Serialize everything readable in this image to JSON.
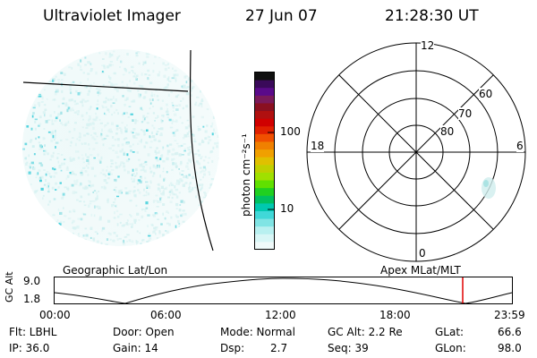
{
  "header": {
    "title": "Ultraviolet Imager",
    "date": "27 Jun 07",
    "time": "21:28:30 UT"
  },
  "colorbar": {
    "label": "photon cm⁻²s⁻¹",
    "ticks": [
      "100",
      "10"
    ],
    "colors": [
      "#101010",
      "#3a0a5a",
      "#5a0a8a",
      "#7a1a5a",
      "#8a1020",
      "#b01010",
      "#d00000",
      "#e02000",
      "#f05000",
      "#f08000",
      "#f0a000",
      "#e0c000",
      "#c0d000",
      "#a0e000",
      "#60e000",
      "#20d020",
      "#00c060",
      "#00c8b0",
      "#40d8d8",
      "#80e4e4",
      "#b8f0f0",
      "#d8f6f6",
      "#f0fafa"
    ]
  },
  "polar": {
    "mlt_labels": {
      "top": "12",
      "left": "18",
      "right": "6",
      "bottom": "0"
    },
    "lat_labels": [
      "80",
      "70",
      "60"
    ]
  },
  "timeline": {
    "left_label": "Geographic Lat/Lon",
    "right_label": "Apex MLat/MLT",
    "axis_title": "GC Alt",
    "y_max": "9.0",
    "y_min": "1.8",
    "x_ticks": [
      "00:00",
      "06:00",
      "12:00",
      "18:00",
      "23:59"
    ],
    "marker_time": "21:28",
    "marker_color": "#e00000"
  },
  "footer": {
    "flt": "Flt: LBHL",
    "door": "Door: Open",
    "mode": "Mode: Normal",
    "gcalt": "GC Alt: 2.2 Re",
    "glat_label": "GLat:",
    "glat": "66.6",
    "ip": "IP: 36.0",
    "gain": "Gain: 14",
    "dsp_label": "Dsp:",
    "dsp": "2.7",
    "seq": "Seq: 39",
    "glon_label": "GLon:",
    "glon": "98.0"
  }
}
